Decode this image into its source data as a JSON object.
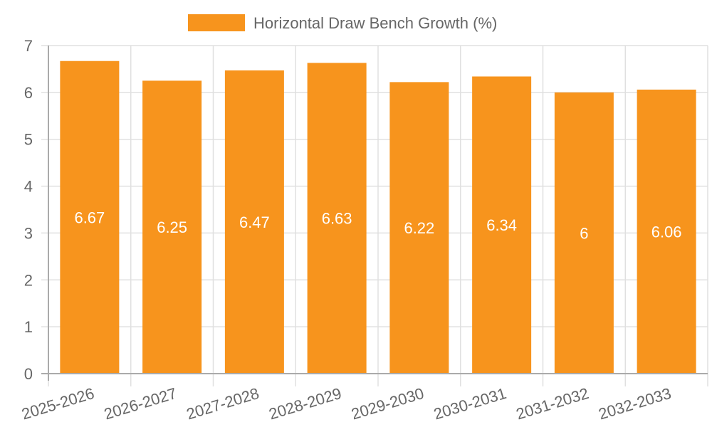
{
  "chart_data": {
    "type": "bar",
    "title": "",
    "legend": [
      {
        "label": "Horizontal Draw Bench Growth (%)",
        "color": "#F7941D"
      }
    ],
    "legend_position": "top",
    "categories": [
      "2025-2026",
      "2026-2027",
      "2027-2028",
      "2028-2029",
      "2029-2030",
      "2030-2031",
      "2031-2032",
      "2032-2033"
    ],
    "series": [
      {
        "name": "Horizontal Draw Bench Growth (%)",
        "values": [
          6.67,
          6.25,
          6.47,
          6.63,
          6.22,
          6.34,
          6,
          6.06
        ],
        "color": "#F7941D"
      }
    ],
    "data_labels": [
      "6.67",
      "6.25",
      "6.47",
      "6.63",
      "6.22",
      "6.34",
      "6",
      "6.06"
    ],
    "xlabel": "",
    "ylabel": "",
    "ylim": [
      0,
      7
    ],
    "yticks": [
      "0",
      "1",
      "2",
      "3",
      "4",
      "5",
      "6",
      "7"
    ],
    "grid": true
  }
}
